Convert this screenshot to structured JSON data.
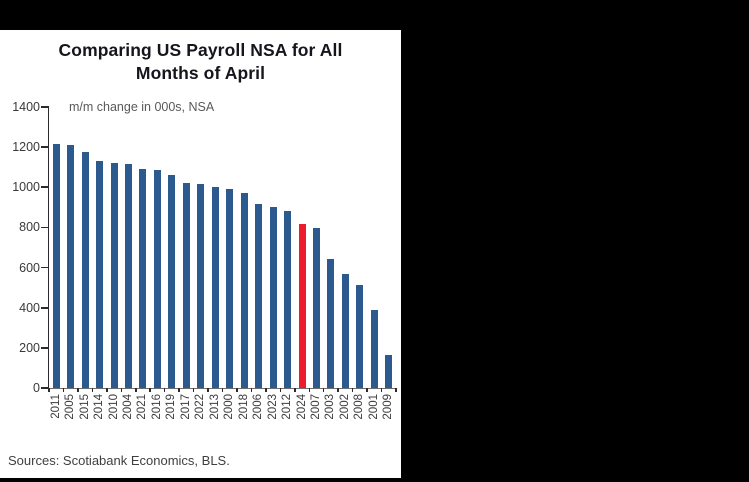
{
  "window": {
    "background_color": "#000000",
    "card_background_color": "#ffffff"
  },
  "chart": {
    "title": "Comparing US Payroll NSA for All Months of April",
    "subtitle": "m/m change in 000s, NSA",
    "sources": "Sources: Scotiabank Economics, BLS."
  },
  "chart_data": {
    "type": "bar",
    "title": "Comparing US Payroll NSA for All Months of April",
    "annotation": "m/m change in 000s, NSA",
    "xlabel": "",
    "ylabel": "m/m change in 000s, NSA",
    "categories": [
      "2011",
      "2005",
      "2015",
      "2014",
      "2010",
      "2004",
      "2021",
      "2016",
      "2019",
      "2017",
      "2022",
      "2013",
      "2000",
      "2018",
      "2006",
      "2023",
      "2012",
      "2024",
      "2007",
      "2003",
      "2002",
      "2008",
      "2001",
      "2009"
    ],
    "values": [
      1215,
      1210,
      1175,
      1130,
      1120,
      1115,
      1090,
      1085,
      1060,
      1020,
      1018,
      1000,
      990,
      970,
      915,
      900,
      880,
      815,
      795,
      645,
      570,
      515,
      390,
      165
    ],
    "highlight_category": "2024",
    "bar_color": "#2d5a8e",
    "highlight_color": "#ec1c2d",
    "ylim": [
      0,
      1400
    ],
    "yticks": [
      1400,
      1200,
      1000,
      800,
      600,
      400,
      200,
      0
    ],
    "grid": false,
    "legend_position": "none",
    "x_labels_rotated": true,
    "sorted": "descending by value"
  }
}
